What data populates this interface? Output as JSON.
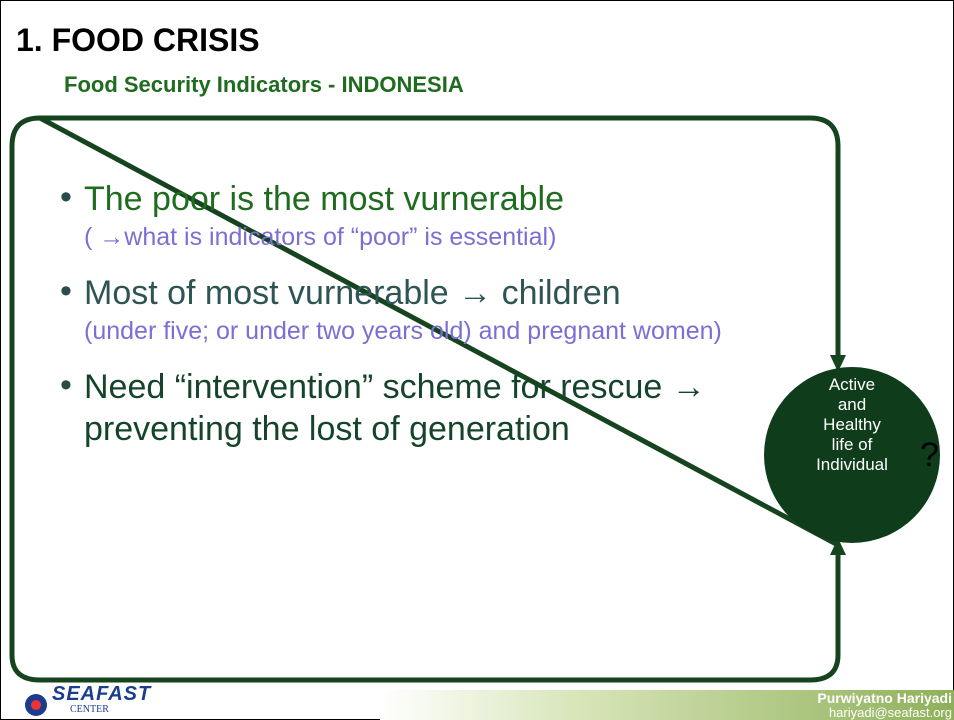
{
  "header": {
    "title": "1. FOOD CRISIS",
    "subtitle": "Food Security Indicators - INDONESIA"
  },
  "bullets": [
    {
      "main": "The poor is the most vurnerable",
      "sub": "( →what is indicators of “poor” is essential)"
    },
    {
      "main": "Most of most vurnerable → children",
      "sub": "(under five; or under two years old) and pregnant women)"
    },
    {
      "main": "Need “intervention” scheme for rescue → preventing the lost of generation"
    }
  ],
  "circle": {
    "lines": [
      "Active",
      "and",
      "Healthy",
      "life of",
      "Individual"
    ],
    "mark": "?"
  },
  "footer": {
    "logo": "SEAFAST",
    "logo_sub": "CENTER",
    "name": "Purwiyatno Hariyadi",
    "email": "hariyadi@seafast.org"
  }
}
